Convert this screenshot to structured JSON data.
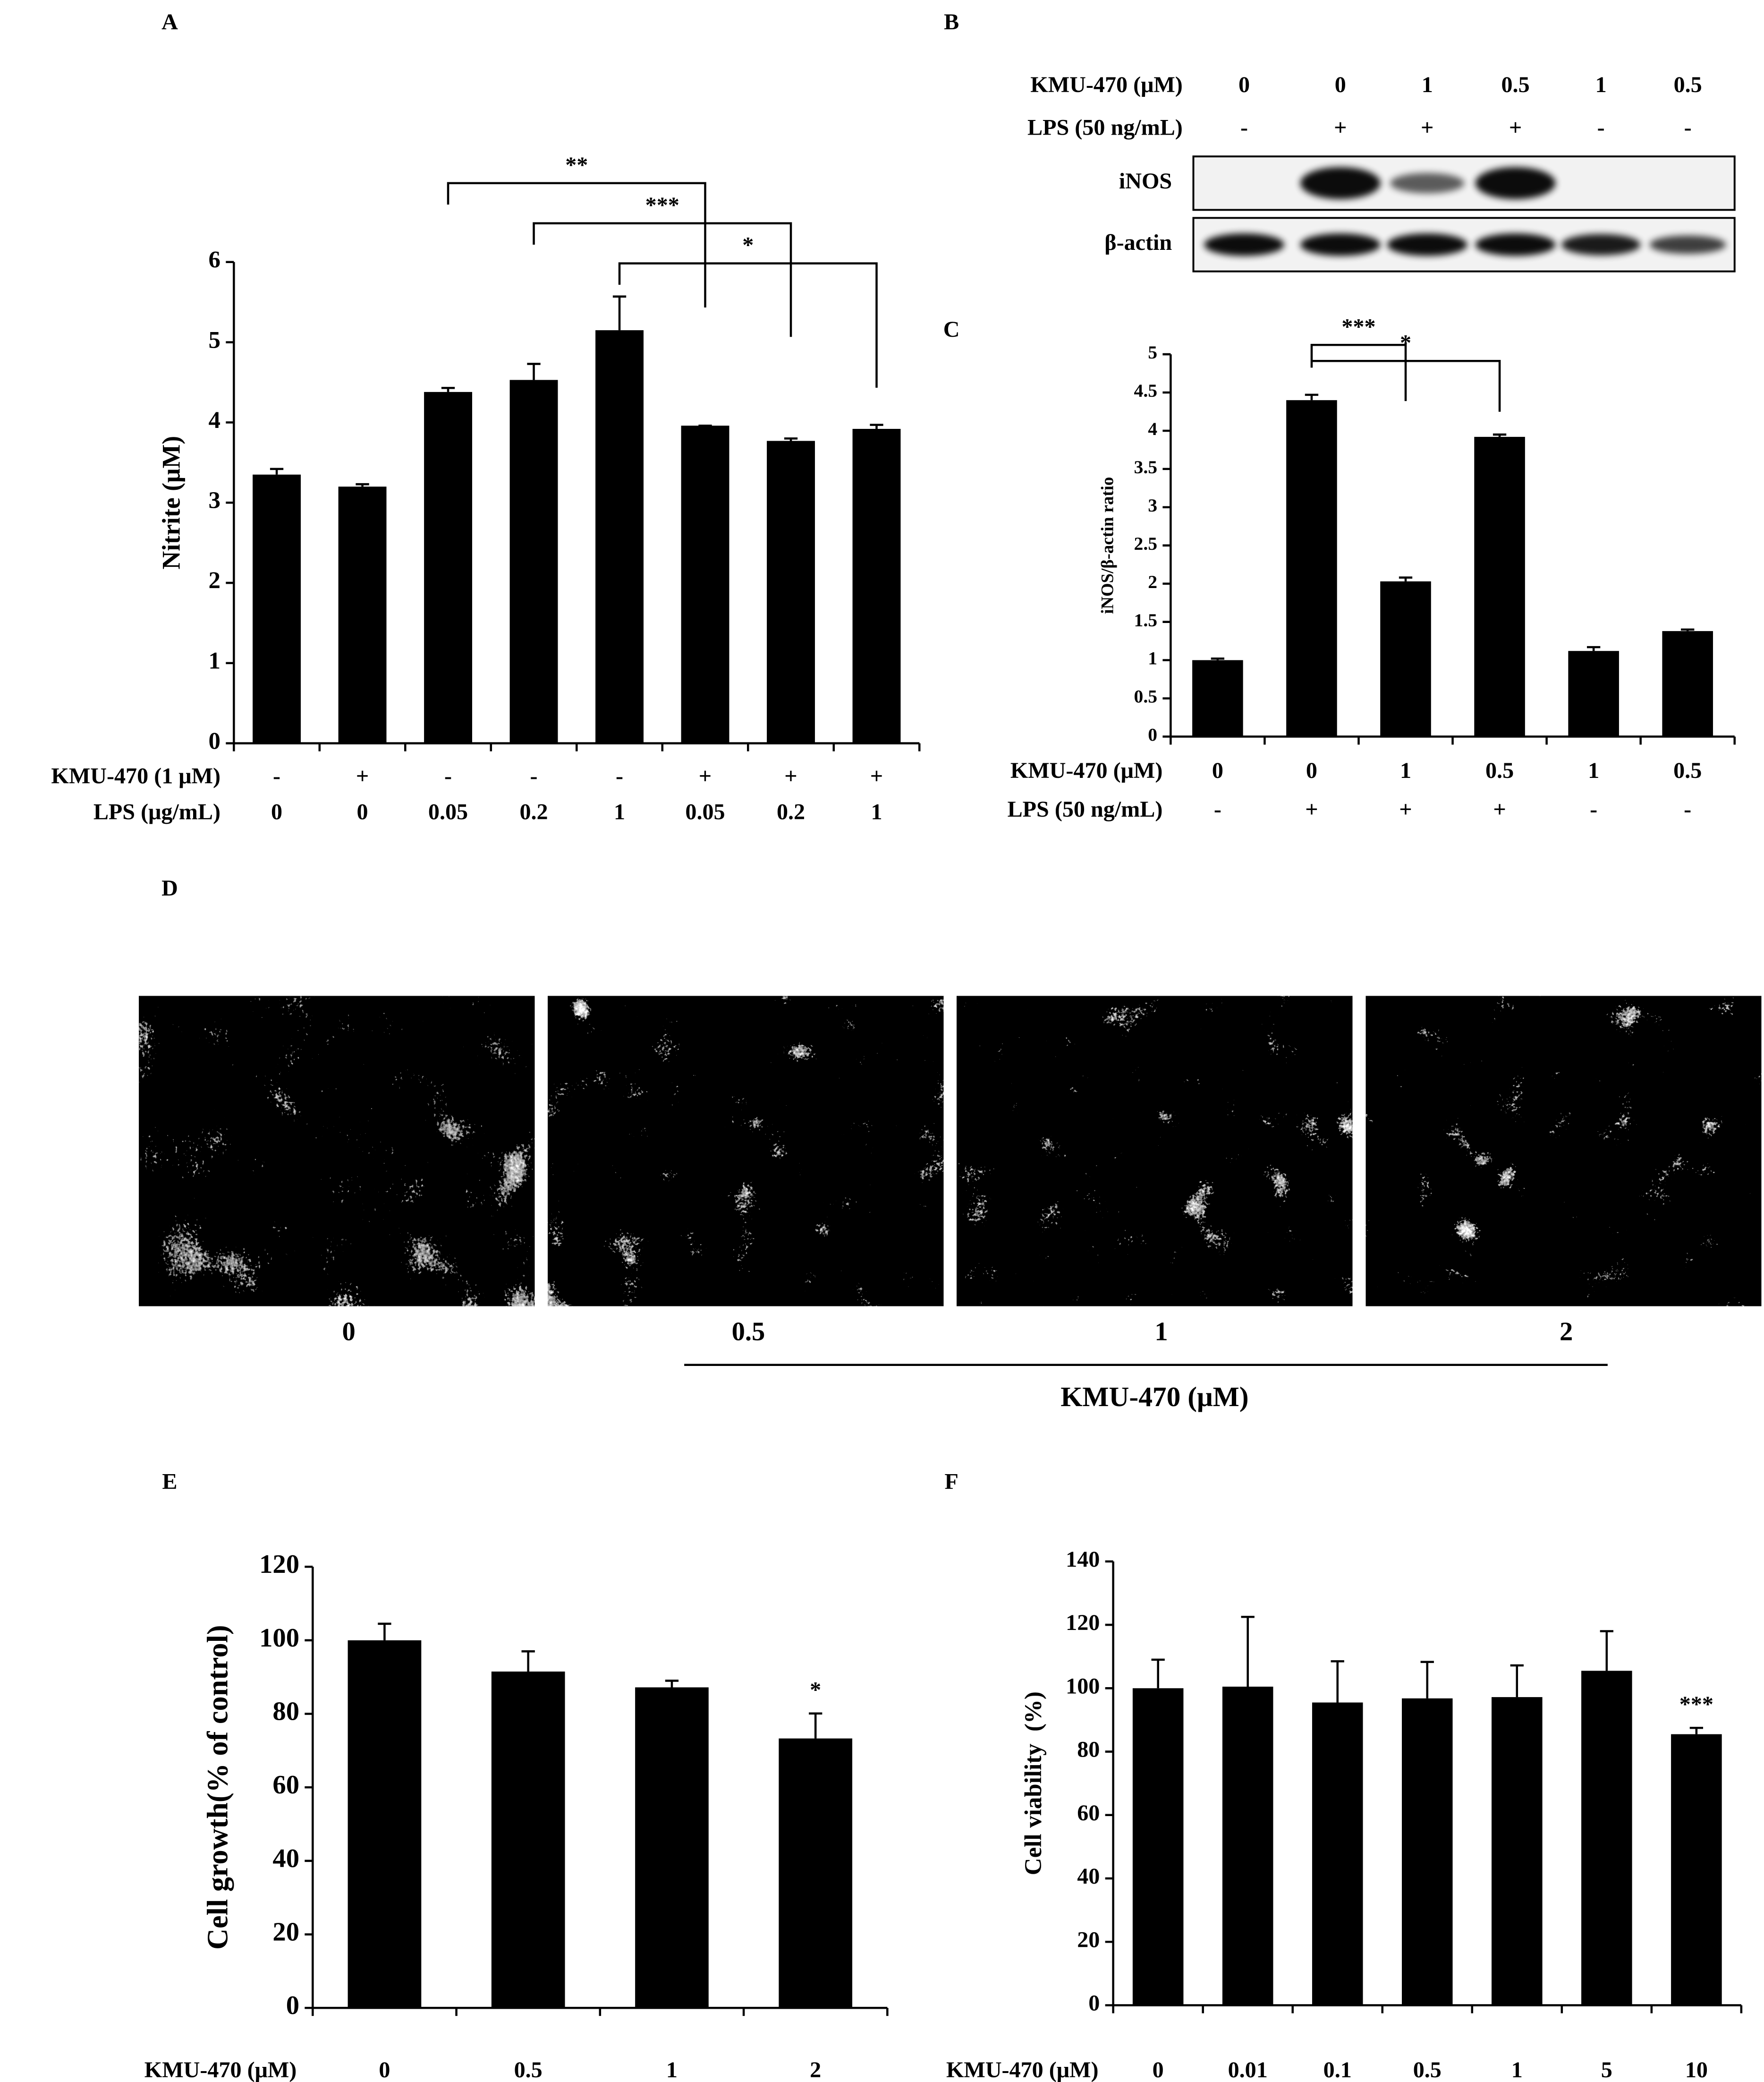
{
  "chart_data": [
    {
      "type": "bar",
      "panel": "A",
      "y_label": "Nitrite (μM)",
      "ylim": [
        0,
        6
      ],
      "yticks": [
        0,
        1,
        2,
        3,
        4,
        5,
        6
      ],
      "values": [
        3.35,
        3.2,
        4.38,
        4.53,
        5.15,
        3.96,
        3.77,
        3.92
      ],
      "errors": [
        0.07,
        0.03,
        0.05,
        0.2,
        0.42,
        0,
        0.03,
        0.05
      ],
      "color": "#000000",
      "rows": [
        {
          "label": "KMU-470 (1 μM)",
          "values": [
            "-",
            "+",
            "-",
            "-",
            "-",
            "+",
            "+",
            "+"
          ]
        },
        {
          "label": "LPS (μg/mL)",
          "values": [
            "0",
            "0",
            "0.05",
            "0.2",
            "1",
            "0.05",
            "0.2",
            "1"
          ]
        }
      ],
      "annotations": [
        "**",
        "***",
        "*"
      ]
    },
    {
      "type": "blot",
      "panel": "B",
      "rows": [
        {
          "label": "KMU-470 (μM)",
          "values": [
            "0",
            "0",
            "1",
            "0.5",
            "1",
            "0.5"
          ]
        },
        {
          "label": "LPS (50 ng/mL)",
          "values": [
            "-",
            "+",
            "+",
            "+",
            "-",
            "-"
          ]
        }
      ],
      "bands": [
        "iNOS",
        "β-actin"
      ]
    },
    {
      "type": "bar",
      "panel": "C",
      "y_label": "iNOS/β-actin ratio",
      "ylim": [
        0,
        5
      ],
      "yticks": [
        0,
        0.5,
        1,
        1.5,
        2,
        2.5,
        3,
        3.5,
        4,
        4.5,
        5
      ],
      "values": [
        1.0,
        4.4,
        2.03,
        3.92,
        1.12,
        1.38
      ],
      "errors": [
        0.02,
        0.07,
        0.05,
        0.03,
        0.05,
        0.02
      ],
      "color": "#000000",
      "rows": [
        {
          "label": "KMU-470 (μM)",
          "values": [
            "0",
            "0",
            "1",
            "0.5",
            "1",
            "0.5"
          ]
        },
        {
          "label": "LPS (50 ng/mL)",
          "values": [
            "-",
            "+",
            "+",
            "+",
            "-",
            "-"
          ]
        }
      ],
      "annotations": [
        "***",
        "*"
      ]
    },
    {
      "type": "images",
      "panel": "D",
      "categories": [
        "0",
        "0.5",
        "1",
        "2"
      ],
      "x_label": "KMU-470 (μM)"
    },
    {
      "type": "bar",
      "panel": "E",
      "y_label": "Cell growth(% of control)",
      "ylim": [
        0,
        120
      ],
      "yticks": [
        0,
        20,
        40,
        60,
        80,
        100,
        120
      ],
      "x_label": "KMU-470 (μM)",
      "categories": [
        "0",
        "0.5",
        "1",
        "2"
      ],
      "values": [
        100,
        91.5,
        87.2,
        73.3
      ],
      "errors": [
        4.5,
        5.5,
        1.8,
        6.8
      ],
      "color": "#000000",
      "annotations": [
        "*"
      ]
    },
    {
      "type": "bar",
      "panel": "F",
      "y_label": "Cell viability  (%)",
      "ylim": [
        0,
        140
      ],
      "yticks": [
        0,
        20,
        40,
        60,
        80,
        100,
        120,
        140
      ],
      "x_label": "KMU-470 (μM)",
      "categories": [
        "0",
        "0.01",
        "0.1",
        "0.5",
        "1",
        "5",
        "10"
      ],
      "values": [
        100,
        100.5,
        95.5,
        96.8,
        97.2,
        105.5,
        85.5
      ],
      "errors": [
        9,
        22,
        13,
        11.5,
        10,
        12.5,
        2
      ],
      "color": "#000000",
      "annotations": [
        "***"
      ]
    }
  ]
}
